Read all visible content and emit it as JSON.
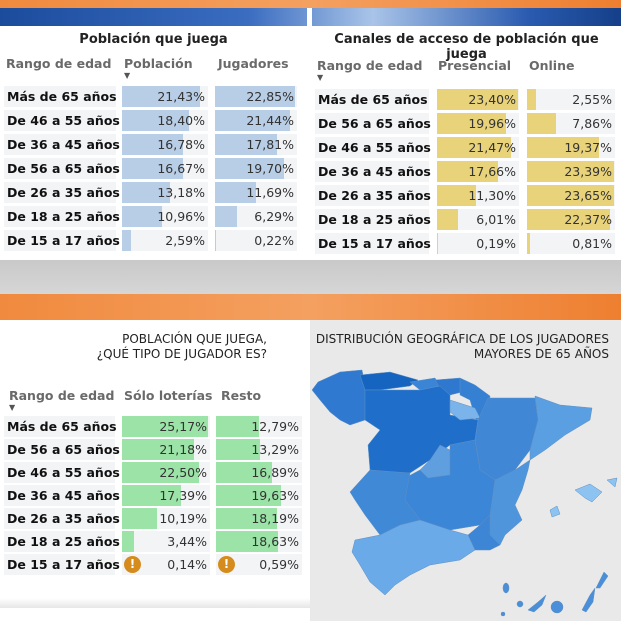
{
  "colors": {
    "top_left_bar": "#b8cde6",
    "top_right_bar": "#e8d27a",
    "bottom_bar": "#9be3a6",
    "warning": "#d68c1c"
  },
  "panel1": {
    "title": "Población que juega",
    "columns": [
      "Rango de edad",
      "Población",
      "Jugadores"
    ],
    "sorted_column": "Población",
    "rows": [
      {
        "label": "Más de 65 años",
        "a": "21,43%",
        "b": "22,85%",
        "av": 21.43,
        "bv": 22.85
      },
      {
        "label": "De 46 a 55 años",
        "a": "18,40%",
        "b": "21,44%",
        "av": 18.4,
        "bv": 21.44
      },
      {
        "label": "De 36 a 45 años",
        "a": "16,78%",
        "b": "17,81%",
        "av": 16.78,
        "bv": 17.81
      },
      {
        "label": "De 56 a 65 años",
        "a": "16,67%",
        "b": "19,70%",
        "av": 16.67,
        "bv": 19.7
      },
      {
        "label": "De 26 a 35 años",
        "a": "13,18%",
        "b": "11,69%",
        "av": 13.18,
        "bv": 11.69
      },
      {
        "label": "De 18 a 25 años",
        "a": "10,96%",
        "b": "6,29%",
        "av": 10.96,
        "bv": 6.29
      },
      {
        "label": "De 15 a 17 años",
        "a": "2,59%",
        "b": "0,22%",
        "av": 2.59,
        "bv": 0.22
      }
    ]
  },
  "panel2": {
    "title": "Canales de acceso de población que juega",
    "columns": [
      "Rango de edad",
      "Presencial",
      "Online"
    ],
    "sorted_column": "Rango de edad",
    "rows": [
      {
        "label": "Más de 65 años",
        "a": "23,40%",
        "b": "2,55%",
        "av": 23.4,
        "bv": 2.55
      },
      {
        "label": "De 56 a 65 años",
        "a": "19,96%",
        "b": "7,86%",
        "av": 19.96,
        "bv": 7.86
      },
      {
        "label": "De 46 a 55 años",
        "a": "21,47%",
        "b": "19,37%",
        "av": 21.47,
        "bv": 19.37
      },
      {
        "label": "De 36 a 45 años",
        "a": "17,66%",
        "b": "23,39%",
        "av": 17.66,
        "bv": 23.39
      },
      {
        "label": "De 26 a 35 años",
        "a": "11,30%",
        "b": "23,65%",
        "av": 11.3,
        "bv": 23.65
      },
      {
        "label": "De 18 a 25 años",
        "a": "6,01%",
        "b": "22,37%",
        "av": 6.01,
        "bv": 22.37
      },
      {
        "label": "De 15 a 17 años",
        "a": "0,19%",
        "b": "0,81%",
        "av": 0.19,
        "bv": 0.81
      }
    ]
  },
  "panel3": {
    "title_line1": "POBLACIÓN QUE JUEGA,",
    "title_line2": "¿QUÉ TIPO DE JUGADOR ES?",
    "columns": [
      "Rango de edad",
      "Sólo loterías",
      "Resto"
    ],
    "sorted_column": "Rango de edad",
    "rows": [
      {
        "label": "Más de 65 años",
        "a": "25,17%",
        "b": "12,79%",
        "av": 25.17,
        "bv": 12.79
      },
      {
        "label": "De 56 a 65 años",
        "a": "21,18%",
        "b": "13,29%",
        "av": 21.18,
        "bv": 13.29
      },
      {
        "label": "De 46 a 55 años",
        "a": "22,50%",
        "b": "16,89%",
        "av": 22.5,
        "bv": 16.89
      },
      {
        "label": "De 36 a 45 años",
        "a": "17,39%",
        "b": "19,63%",
        "av": 17.39,
        "bv": 19.63
      },
      {
        "label": "De 26 a 35 años",
        "a": "10,19%",
        "b": "18,19%",
        "av": 10.19,
        "bv": 18.19
      },
      {
        "label": "De 18 a 25 años",
        "a": "3,44%",
        "b": "18,63%",
        "av": 3.44,
        "bv": 18.63
      },
      {
        "label": "De 15 a 17 años",
        "a": "0,14%",
        "b": "0,59%",
        "av": 0.14,
        "bv": 0.59,
        "warning": true
      }
    ]
  },
  "map": {
    "title_line1": "DISTRIBUCIÓN GEOGRÁFICA DE LOS JUGADORES",
    "title_line2": "MAYORES DE 65 AÑOS"
  }
}
